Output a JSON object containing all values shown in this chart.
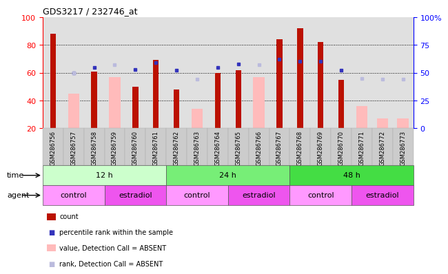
{
  "title": "GDS3217 / 232746_at",
  "samples": [
    "GSM286756",
    "GSM286757",
    "GSM286758",
    "GSM286759",
    "GSM286760",
    "GSM286761",
    "GSM286762",
    "GSM286763",
    "GSM286764",
    "GSM286765",
    "GSM286766",
    "GSM286767",
    "GSM286768",
    "GSM286769",
    "GSM286770",
    "GSM286771",
    "GSM286772",
    "GSM286773"
  ],
  "count_values": [
    88,
    null,
    61,
    null,
    50,
    69,
    48,
    null,
    60,
    62,
    null,
    84,
    92,
    82,
    55,
    null,
    null,
    null
  ],
  "absent_value_bars": [
    null,
    45,
    null,
    57,
    null,
    null,
    null,
    34,
    null,
    null,
    57,
    null,
    null,
    null,
    null,
    36,
    27,
    27
  ],
  "percentile_rank": [
    null,
    50,
    55,
    null,
    53,
    59,
    52,
    null,
    55,
    58,
    null,
    62,
    60,
    60,
    52,
    null,
    null,
    null
  ],
  "absent_rank_bars": [
    null,
    50,
    null,
    57,
    null,
    null,
    null,
    44,
    null,
    null,
    57,
    null,
    null,
    null,
    null,
    45,
    44,
    44
  ],
  "time_groups": [
    {
      "label": "12 h",
      "start": 0,
      "end": 6
    },
    {
      "label": "24 h",
      "start": 6,
      "end": 12
    },
    {
      "label": "48 h",
      "start": 12,
      "end": 18
    }
  ],
  "time_colors": [
    "#ccffcc",
    "#77ee77",
    "#44dd44"
  ],
  "agent_groups": [
    {
      "label": "control",
      "start": 0,
      "end": 3
    },
    {
      "label": "estradiol",
      "start": 3,
      "end": 6
    },
    {
      "label": "control",
      "start": 6,
      "end": 9
    },
    {
      "label": "estradiol",
      "start": 9,
      "end": 12
    },
    {
      "label": "control",
      "start": 12,
      "end": 15
    },
    {
      "label": "estradiol",
      "start": 15,
      "end": 18
    }
  ],
  "agent_colors": [
    "#ff99ff",
    "#ee55ee",
    "#ff99ff",
    "#ee55ee",
    "#ff99ff",
    "#ee55ee"
  ],
  "ylim_left": [
    20,
    100
  ],
  "ylim_right": [
    0,
    100
  ],
  "yticks_left": [
    20,
    40,
    60,
    80,
    100
  ],
  "yticks_right": [
    0,
    25,
    50,
    75,
    100
  ],
  "bar_color_count": "#bb1100",
  "bar_color_absent_value": "#ffbbbb",
  "dot_color_rank": "#3333bb",
  "dot_color_absent_rank": "#bbbbdd",
  "col_bg_odd": "#dddddd",
  "col_bg_even": "#eeeeee"
}
